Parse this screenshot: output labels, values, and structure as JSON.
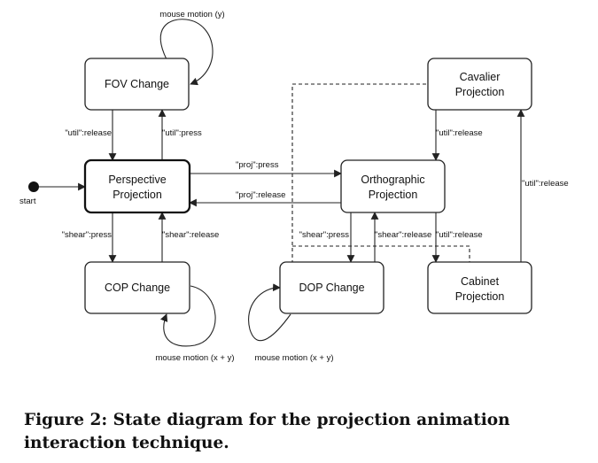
{
  "states": {
    "fov": "FOV Change",
    "perspective": [
      "Perspective",
      "Projection"
    ],
    "cop": "COP Change",
    "orthographic": [
      "Orthographic",
      "Projection"
    ],
    "dop": "DOP Change",
    "cavalier": [
      "Cavalier",
      "Projection"
    ],
    "cabinet": [
      "Cabinet",
      "Projection"
    ]
  },
  "start_label": "start",
  "edges": {
    "fov_loop": "mouse motion (y)",
    "util_release_left": "\"util\":release",
    "util_press_left": "\"util\":press",
    "proj_press": "\"proj\":press",
    "proj_release": "\"proj\":release",
    "shear_press_left": "\"shear\":press",
    "shear_release_left": "\"shear\":release",
    "cop_loop": "mouse motion (x + y)",
    "dop_loop": "mouse motion (x + y)",
    "shear_press_right": "\"shear\":press",
    "shear_release_right": "\"shear\":release",
    "util_release_cav_ortho": "\"util\":release",
    "util_release_ortho_cab": "\"util\":release",
    "util_release_cab_cav": "\"util\":release"
  },
  "caption": "Figure 2: State diagram for the projection animation interaction technique."
}
